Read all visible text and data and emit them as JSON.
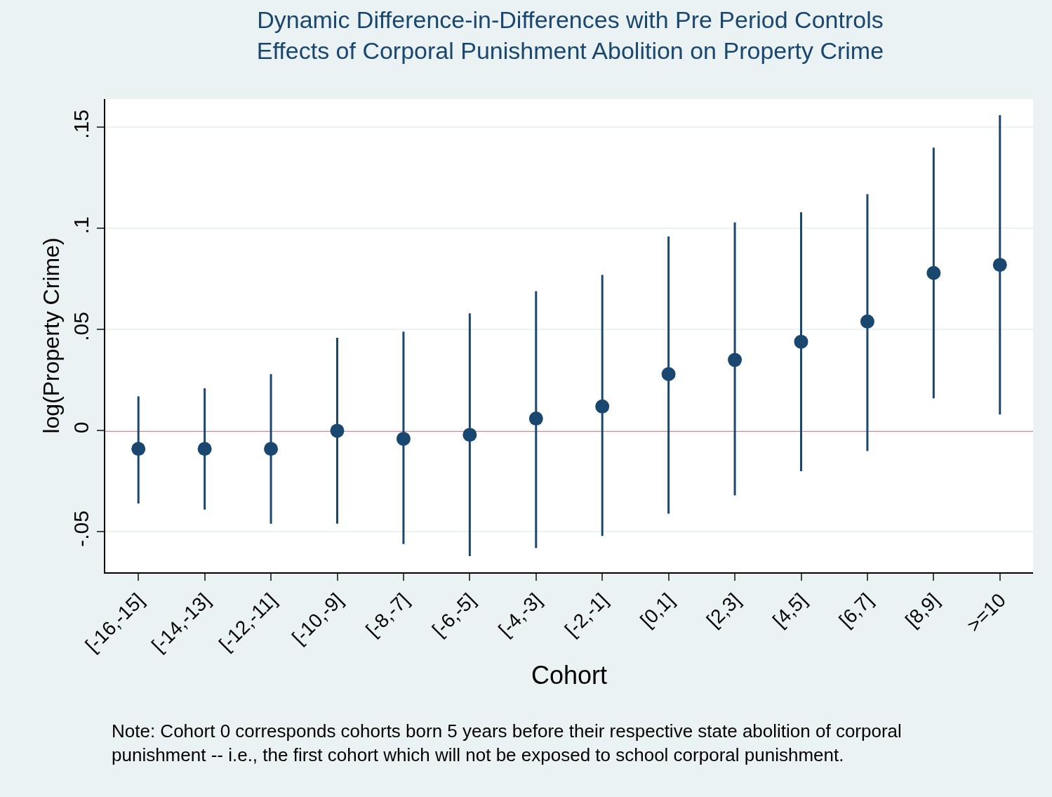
{
  "chart_data": {
    "type": "scatter",
    "title": "Dynamic Difference-in-Differences with Pre Period Controls\nEffects of Corporal Punishment Abolition on Property Crime",
    "xlabel": "Cohort",
    "ylabel": "log(Property Crime)",
    "categories": [
      "[-16,-15]",
      "[-14,-13]",
      "[-12,-11]",
      "[-10,-9]",
      "[-8,-7]",
      "[-6,-5]",
      "[-4,-3]",
      "[-2,-1]",
      "[0,1]",
      "[2,3]",
      "[4,5]",
      "[6,7]",
      "[8,9]",
      ">=10"
    ],
    "series": [
      {
        "color": "#1a476f",
        "values": [
          -0.009,
          -0.009,
          -0.009,
          0.0,
          -0.004,
          -0.002,
          0.006,
          0.012,
          0.028,
          0.035,
          0.044,
          0.054,
          0.078,
          0.082
        ],
        "errors": [
          [
            -0.036,
            0.017
          ],
          [
            -0.039,
            0.021
          ],
          [
            -0.046,
            0.028
          ],
          [
            -0.046,
            0.046
          ],
          [
            -0.056,
            0.049
          ],
          [
            -0.062,
            0.058
          ],
          [
            -0.058,
            0.069
          ],
          [
            -0.052,
            0.077
          ],
          [
            -0.041,
            0.096
          ],
          [
            -0.032,
            0.103
          ],
          [
            -0.02,
            0.108
          ],
          [
            -0.01,
            0.117
          ],
          [
            0.016,
            0.14
          ],
          [
            0.008,
            0.156
          ]
        ]
      }
    ],
    "ylim": [
      -0.07,
      0.164
    ],
    "yticks": [
      {
        "value": -0.05,
        "label": "-.05"
      },
      0,
      {
        "value": 0.05,
        "label": ".05"
      },
      {
        "value": 0.1,
        "label": ".1"
      },
      {
        "value": 0.15,
        "label": ".15"
      }
    ],
    "ref_lines": [
      {
        "axis": "y",
        "value": 0,
        "color": "#c10534"
      }
    ],
    "grid": "y",
    "marker": "circle",
    "legend": false,
    "annotations": [
      "Note: Cohort 0 corresponds cohorts born 5 years before their respective state abolition of corporal\npunishment -- i.e., the first cohort which will not be exposed to school corporal punishment."
    ]
  }
}
